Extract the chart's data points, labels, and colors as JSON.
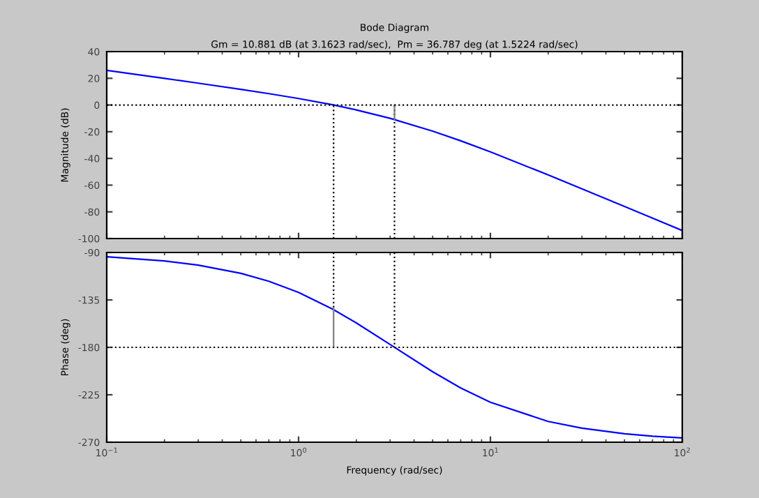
{
  "chart_data": [
    {
      "type": "line",
      "title": "Bode Diagram",
      "subtitle": "Gm = 10.881 dB (at 3.1623 rad/sec),  Pm = 36.787 deg (at 1.5224 rad/sec)",
      "ylabel": "Magnitude (dB)",
      "log": "x",
      "xlim": [
        0.1,
        100
      ],
      "xticks": [
        {
          "value": 0.1,
          "label": null
        },
        {
          "value": 1,
          "label": null
        },
        {
          "value": 10,
          "label": null
        },
        {
          "value": 100,
          "label": null
        }
      ],
      "ylim": [
        -100,
        40
      ],
      "yticks": [
        -100,
        -80,
        -60,
        -40,
        -20,
        0,
        20,
        40
      ],
      "tick_labels": "y",
      "grid": false,
      "legend": false,
      "ref_lines": [
        {
          "axis": "y",
          "value": 0,
          "color": "#000000",
          "line_style": "dotted"
        }
      ],
      "series": [
        {
          "color": "#0000ff",
          "x": [
            0.1,
            0.2,
            0.3,
            0.5,
            0.7,
            1,
            1.5,
            2,
            3,
            5,
            7,
            10,
            20,
            30,
            50,
            70,
            100
          ],
          "values": [
            26.0,
            19.95,
            16.36,
            11.74,
            8.54,
            4.88,
            0.19,
            -3.65,
            -9.97,
            -19.57,
            -26.81,
            -35.12,
            -52.34,
            -62.74,
            -75.97,
            -84.71,
            -93.99
          ]
        },
        {
          "color": "#000000",
          "line_style": "dotted",
          "x": [
            1.5224,
            1.5224
          ],
          "values": [
            -100,
            0
          ]
        },
        {
          "color": "#000000",
          "line_style": "dotted",
          "x": [
            3.1623,
            3.1623
          ],
          "values": [
            -100,
            0
          ]
        },
        {
          "color": "#808080",
          "line_style": "solid",
          "x": [
            3.1623,
            3.1623
          ],
          "values": [
            0,
            -10.881
          ]
        }
      ]
    },
    {
      "type": "line",
      "xlabel": "Frequency (rad/sec)",
      "ylabel": "Phase (deg)",
      "log": "x",
      "xlim": [
        0.1,
        100
      ],
      "xticks": [
        {
          "value": 0.1,
          "label": "10$^{−1}$"
        },
        {
          "value": 1,
          "label": "10$^{0}$"
        },
        {
          "value": 10,
          "label": "10$^{1}$"
        },
        {
          "value": 100,
          "label": "10$^{2}$"
        }
      ],
      "ylim": [
        -270,
        -90
      ],
      "yticks": [
        -270,
        -225,
        -180,
        -135,
        -90
      ],
      "grid": false,
      "legend": false,
      "ref_lines": [
        {
          "axis": "y",
          "value": -180,
          "color": "#000000",
          "line_style": "dotted"
        }
      ],
      "series": [
        {
          "color": "#0000ff",
          "x": [
            0.1,
            0.2,
            0.3,
            0.5,
            0.7,
            1,
            1.5,
            2,
            3,
            5,
            7,
            10,
            20,
            30,
            50,
            70,
            100
          ],
          "values": [
            -94.0,
            -98.0,
            -102.0,
            -109.8,
            -117.3,
            -127.9,
            -143.6,
            -156.8,
            -177.3,
            -203.2,
            -218.5,
            -232.1,
            -250.3,
            -256.7,
            -262.0,
            -264.3,
            -266.0
          ]
        },
        {
          "color": "#000000",
          "line_style": "dotted",
          "x": [
            1.5224,
            1.5224
          ],
          "values": [
            -90,
            -143.2
          ]
        },
        {
          "color": "#000000",
          "line_style": "dotted",
          "x": [
            3.1623,
            3.1623
          ],
          "values": [
            -90,
            -180
          ]
        },
        {
          "color": "#808080",
          "line_style": "solid",
          "x": [
            1.5224,
            1.5224
          ],
          "values": [
            -180,
            -143.2
          ]
        }
      ]
    }
  ]
}
